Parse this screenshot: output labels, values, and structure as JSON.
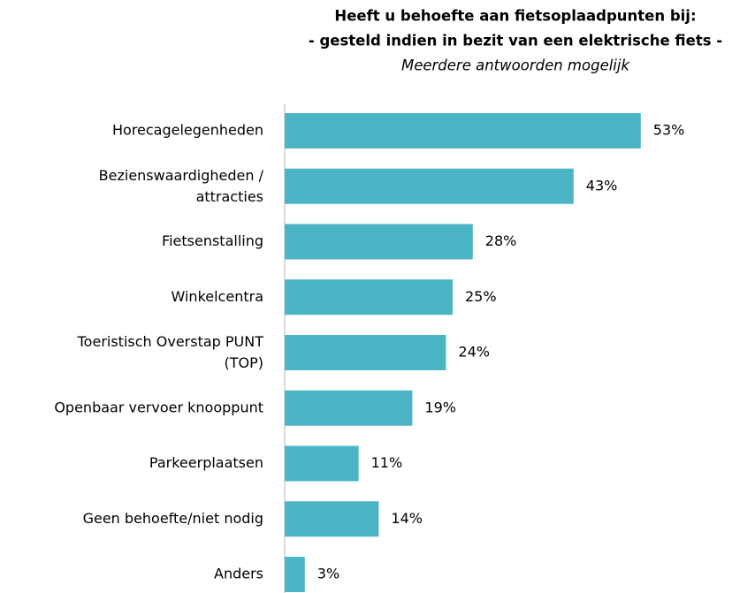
{
  "chart_data": {
    "type": "bar",
    "orientation": "horizontal",
    "title": [
      "Heeft u behoefte aan fietsoplaadpunten bij:",
      "- gesteld indien in bezit van een elektrische fiets -"
    ],
    "subtitle": "Meerdere antwoorden mogelijk",
    "categories": [
      "Horecagelegenheden",
      "Bezienswaardigheden /\nattracties",
      "Fietsenstalling",
      "Winkelcentra",
      "Toeristisch Overstap PUNT\n(TOP)",
      "Openbaar vervoer knooppunt",
      "Parkeerplaatsen",
      "Geen behoefte/niet nodig",
      "Anders"
    ],
    "values": [
      53,
      43,
      28,
      25,
      24,
      19,
      11,
      14,
      3
    ],
    "value_labels": [
      "53%",
      "43%",
      "28%",
      "25%",
      "24%",
      "19%",
      "11%",
      "14%",
      "3%"
    ],
    "color": "#4bb5c6",
    "xlim": [
      0,
      60
    ]
  }
}
